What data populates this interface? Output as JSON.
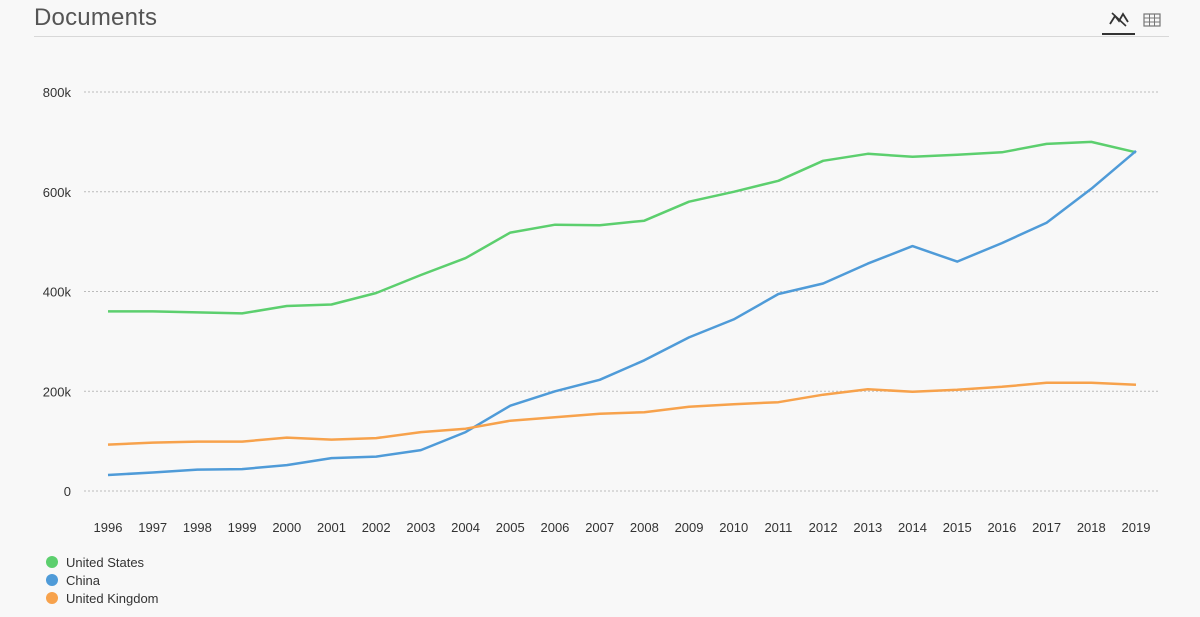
{
  "header": {
    "title": "Documents",
    "toggles": [
      {
        "icon": "line-chart-icon",
        "active": true
      },
      {
        "icon": "table-icon",
        "active": false
      }
    ]
  },
  "chart_data": {
    "type": "line",
    "title": "Documents",
    "xlabel": "",
    "ylabel": "",
    "x": [
      "1996",
      "1997",
      "1998",
      "1999",
      "2000",
      "2001",
      "2002",
      "2003",
      "2004",
      "2005",
      "2006",
      "2007",
      "2008",
      "2009",
      "2010",
      "2011",
      "2012",
      "2013",
      "2014",
      "2015",
      "2016",
      "2017",
      "2018",
      "2019"
    ],
    "ylim": [
      0,
      800000
    ],
    "yticks": [
      0,
      200000,
      400000,
      600000,
      800000
    ],
    "ytick_labels": [
      "0",
      "200k",
      "400k",
      "600k",
      "800k"
    ],
    "grid": true,
    "legend_position": "bottom-left",
    "series": [
      {
        "name": "United States",
        "color": "#5ccf6e",
        "values": [
          360000,
          360000,
          358000,
          356000,
          371000,
          374000,
          397000,
          433000,
          467000,
          518000,
          534000,
          533000,
          542000,
          580000,
          600000,
          622000,
          662000,
          676000,
          670000,
          674000,
          679000,
          696000,
          700000,
          679000
        ]
      },
      {
        "name": "China",
        "color": "#4f9bd8",
        "values": [
          32000,
          37000,
          43000,
          44000,
          52000,
          66000,
          69000,
          82000,
          118000,
          171000,
          200000,
          223000,
          262000,
          308000,
          344000,
          395000,
          416000,
          456000,
          491000,
          460000,
          497000,
          538000,
          606000,
          682000
        ]
      },
      {
        "name": "United Kingdom",
        "color": "#f7a24c",
        "values": [
          93000,
          97000,
          99000,
          99000,
          107000,
          103000,
          106000,
          118000,
          125000,
          141000,
          148000,
          155000,
          158000,
          169000,
          174000,
          178000,
          193000,
          204000,
          199000,
          203000,
          209000,
          217000,
          217000,
          213000
        ]
      }
    ]
  }
}
